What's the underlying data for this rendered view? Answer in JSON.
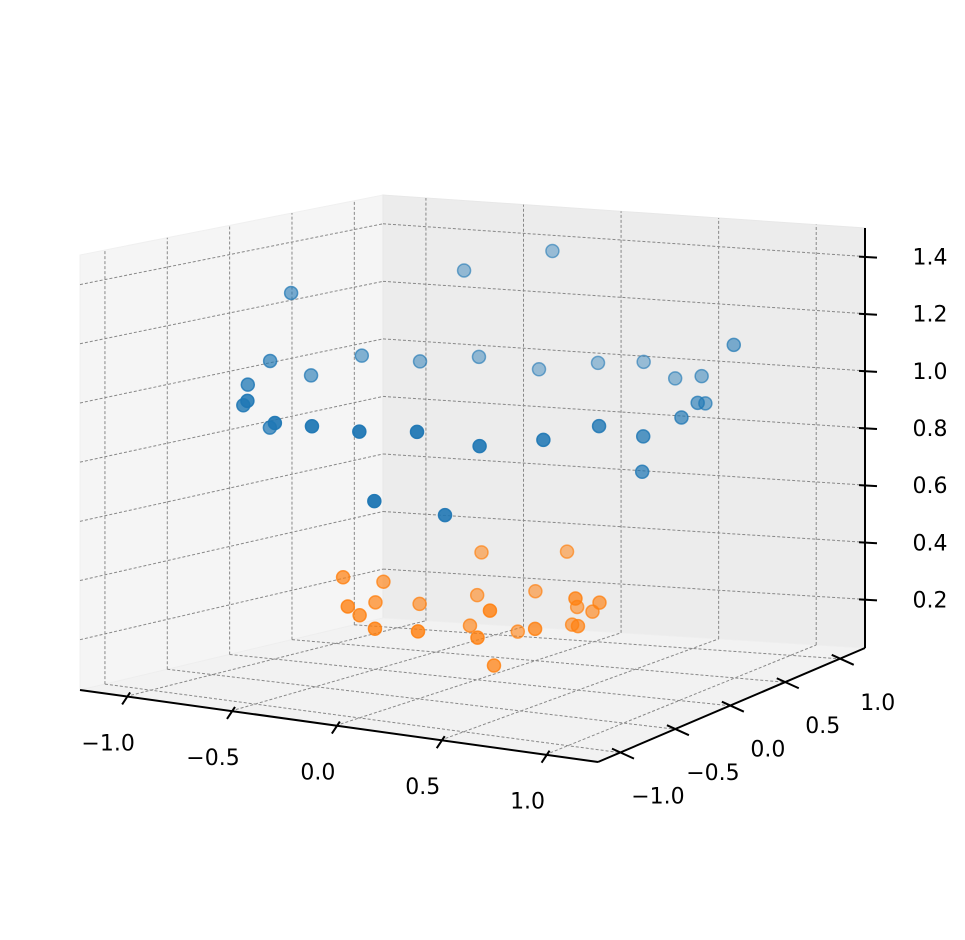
{
  "chart_data": {
    "type": "scatter3d",
    "xlim": [
      -1.22,
      1.25
    ],
    "ylim": [
      -1.2,
      1.23
    ],
    "zlim": [
      0.03,
      1.5
    ],
    "xticks": [
      {
        "value": -1.0,
        "label": "−1.0"
      },
      {
        "value": -0.5,
        "label": "−0.5"
      },
      {
        "value": 0.0,
        "label": "0.0"
      },
      0.5,
      {
        "value": 1.0,
        "label": "1.0"
      }
    ],
    "yticks": [
      {
        "value": -1.0,
        "label": "−1.0"
      },
      {
        "value": -0.5,
        "label": "−0.5"
      },
      {
        "value": 0.0,
        "label": "0.0"
      },
      0.5,
      {
        "value": 1.0,
        "label": "1.0"
      }
    ],
    "zticks": [
      0.2,
      0.4,
      0.6,
      0.8,
      {
        "value": 1.0,
        "label": "1.0"
      },
      1.2,
      1.4
    ],
    "grid": true,
    "series": [
      {
        "color": "#1f77b4",
        "x": [
          1.0,
          0.97,
          0.88,
          0.72,
          0.5,
          0.27,
          0.02,
          -0.25,
          -0.5,
          -0.7,
          -0.87,
          -0.97,
          -1.02,
          -0.96,
          -0.85,
          -0.7,
          -0.48,
          -0.25,
          0.0,
          0.26,
          0.5,
          0.72,
          0.87,
          0.96,
          -1.1,
          1.05,
          -0.6,
          0.3,
          -0.2,
          0.9,
          -0.9,
          0.1
        ],
        "y": [
          0.02,
          0.22,
          0.45,
          0.7,
          0.85,
          0.97,
          1.0,
          0.95,
          0.86,
          0.7,
          0.5,
          0.25,
          0.0,
          -0.28,
          -0.5,
          -0.72,
          -0.87,
          -0.96,
          -1.0,
          -0.97,
          -0.86,
          -0.7,
          -0.48,
          -0.25,
          0.3,
          0.4,
          0.9,
          -0.8,
          0.98,
          -0.15,
          -0.2,
          -1.05
        ],
        "z": [
          1.0,
          1.02,
          0.98,
          1.03,
          0.99,
          1.02,
          1.0,
          0.97,
          1.01,
          1.0,
          1.03,
          0.98,
          1.05,
          1.0,
          0.96,
          1.01,
          0.97,
          0.99,
          1.0,
          1.02,
          0.98,
          1.0,
          1.03,
          0.97,
          1.25,
          1.2,
          1.3,
          0.72,
          1.38,
          0.83,
          0.85,
          0.78
        ]
      },
      {
        "color": "#ff7f0e",
        "x": [
          0.5,
          0.43,
          0.25,
          0.0,
          -0.25,
          -0.43,
          -0.5,
          -0.43,
          -0.25,
          0.0,
          0.25,
          0.43,
          0.55,
          -0.55,
          0.1,
          -0.3,
          0.35,
          -0.4,
          0.2,
          -0.15,
          0.3,
          -0.6,
          0.6,
          0.0
        ],
        "y": [
          0.0,
          0.25,
          0.43,
          0.5,
          0.43,
          0.25,
          0.0,
          -0.25,
          -0.43,
          -0.5,
          -0.43,
          -0.25,
          0.1,
          0.15,
          0.6,
          0.55,
          -0.5,
          -0.4,
          -0.2,
          0.2,
          0.3,
          -0.1,
          -0.2,
          0.35
        ],
        "z": [
          0.25,
          0.26,
          0.24,
          0.27,
          0.25,
          0.23,
          0.26,
          0.25,
          0.24,
          0.26,
          0.25,
          0.27,
          0.32,
          0.31,
          0.4,
          0.38,
          0.36,
          0.3,
          0.12,
          0.18,
          0.2,
          0.35,
          0.38,
          0.15
        ]
      }
    ]
  }
}
